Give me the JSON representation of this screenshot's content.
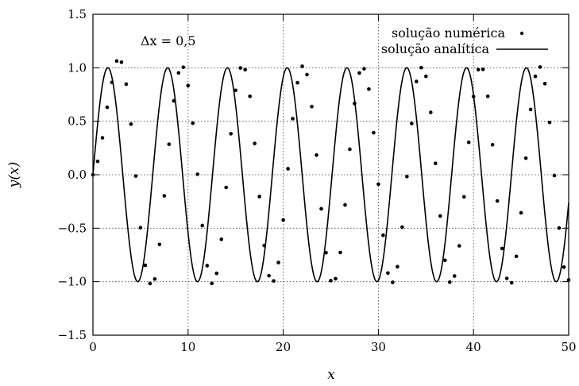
{
  "chart_data": {
    "type": "line",
    "xlabel": "x",
    "ylabel": "y(x)",
    "xlim": [
      0,
      50
    ],
    "ylim": [
      -1.5,
      1.5
    ],
    "x_ticks": [
      0,
      10,
      20,
      30,
      40,
      50
    ],
    "x_tick_labels": [
      "0",
      "10",
      "20",
      "30",
      "40",
      "50"
    ],
    "y_ticks": [
      -1.5,
      -1.0,
      -0.5,
      0.0,
      0.5,
      1.0,
      1.5
    ],
    "y_tick_labels": [
      "−1.5",
      "−1.0",
      "−0.5",
      "0.0",
      "0.5",
      "1.0",
      "1.5"
    ],
    "grid": true,
    "legend_position": "top-right",
    "annotation": "Δx = 0,5",
    "series": [
      {
        "name": "solução numérica",
        "style": "points",
        "color": "#000000",
        "x": [
          0,
          0.5,
          1,
          1.5,
          2,
          2.5,
          3,
          3.5,
          4,
          4.5,
          5,
          5.5,
          6,
          6.5,
          7,
          7.5,
          8,
          8.5,
          9,
          9.5,
          10,
          10.5,
          11,
          11.5,
          12,
          12.5,
          13,
          13.5,
          14,
          14.5,
          15,
          15.5,
          16,
          16.5,
          17,
          17.5,
          18,
          18.5,
          19,
          19.5,
          20,
          20.5,
          21,
          21.5,
          22,
          22.5,
          23,
          23.5,
          24,
          24.5,
          25,
          25.5,
          26,
          26.5,
          27,
          27.5,
          28,
          28.5,
          29,
          29.5,
          30,
          30.5,
          31,
          31.5,
          32,
          32.5,
          33,
          33.5,
          34,
          34.5,
          35,
          35.5,
          36,
          36.5,
          37,
          37.5,
          38,
          38.5,
          39,
          39.5,
          40,
          40.5,
          41,
          41.5,
          42,
          42.5,
          43,
          43.5,
          44,
          44.5,
          45,
          45.5,
          46,
          46.5,
          47,
          47.5,
          48,
          48.5,
          49,
          49.5,
          50
        ],
        "y": [
          0,
          0.125,
          0.345,
          0.631,
          0.863,
          1.063,
          1.052,
          0.847,
          0.473,
          -0.0125,
          -0.495,
          -0.847,
          -1.017,
          -0.975,
          -0.652,
          -0.197,
          0.285,
          0.691,
          0.952,
          1.005,
          0.834,
          0.482,
          0.0045,
          -0.475,
          -0.85,
          -1.016,
          -0.922,
          -0.604,
          -0.119,
          0.383,
          0.789,
          0.998,
          0.982,
          0.733,
          0.292,
          -0.204,
          -0.662,
          -0.944,
          -0.993,
          -0.821,
          -0.423,
          0.056,
          0.524,
          0.86,
          1.014,
          0.936,
          0.637,
          0.184,
          -0.318,
          -0.73,
          -0.99,
          -0.972,
          -0.727,
          -0.282,
          0.238,
          0.666,
          0.951,
          0.991,
          0.801,
          0.393,
          -0.088,
          -0.566,
          -0.919,
          -1.006,
          -0.86,
          -0.49,
          -0.017,
          0.479,
          0.872,
          1.001,
          0.92,
          0.583,
          0.106,
          -0.386,
          -0.8,
          -1.004,
          -0.947,
          -0.665,
          -0.206,
          0.303,
          0.731,
          0.983,
          0.985,
          0.733,
          0.28,
          -0.245,
          -0.69,
          -0.969,
          -1.01,
          -0.763,
          -0.356,
          0.155,
          0.61,
          0.92,
          1.007,
          0.852,
          0.489,
          -0.007,
          -0.498,
          -0.864,
          -0.984
        ]
      },
      {
        "name": "solução analítica",
        "style": "line",
        "color": "#000000",
        "function": "sin(x)"
      }
    ]
  }
}
